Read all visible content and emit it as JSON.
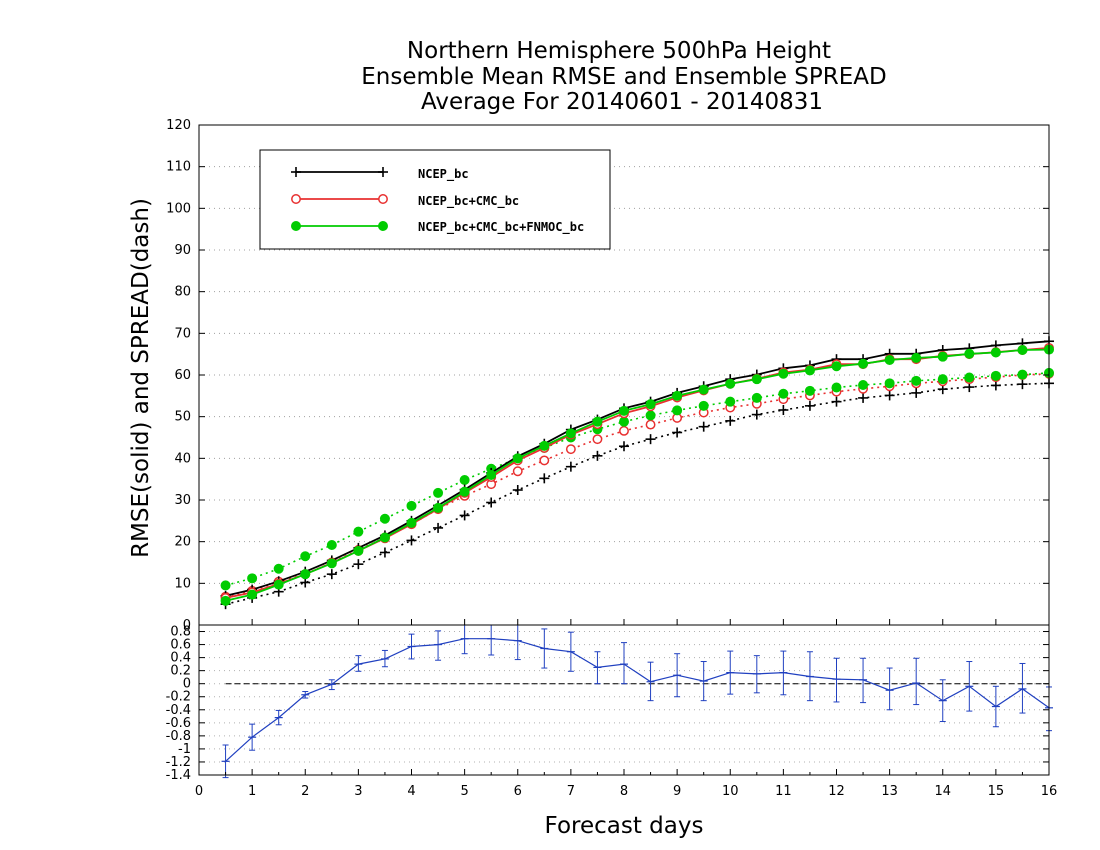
{
  "chart_data": {
    "type": "line",
    "title_lines": [
      "Northern Hemisphere 500hPa Height",
      "Ensemble Mean RMSE and Ensemble SPREAD",
      "Average For 20140601 - 20140831"
    ],
    "xlabel": "Forecast days",
    "ylabel": "RMSE(solid) and SPREAD(dash)",
    "xlim": [
      0,
      16
    ],
    "x_ticks": [
      0,
      1,
      2,
      3,
      4,
      5,
      6,
      7,
      8,
      9,
      10,
      11,
      12,
      13,
      14,
      15,
      16
    ],
    "grid": "horizontal dotted",
    "legend_position": "top-left",
    "x": [
      0.5,
      1.0,
      1.5,
      2.0,
      2.5,
      3.0,
      3.5,
      4.0,
      4.5,
      5.0,
      5.5,
      6.0,
      6.5,
      7.0,
      7.5,
      8.0,
      8.5,
      9.0,
      9.5,
      10.0,
      10.5,
      11.0,
      11.5,
      12.0,
      12.5,
      13.0,
      13.5,
      14.0,
      14.5,
      15.0,
      15.5,
      16.0
    ],
    "top_panel": {
      "ylim": [
        0,
        120
      ],
      "y_ticks": [
        0,
        10,
        20,
        30,
        40,
        50,
        60,
        70,
        80,
        90,
        100,
        110,
        120
      ],
      "series": [
        {
          "name": "NCEP_bc",
          "kind": "rmse",
          "color": "#000000",
          "marker": "plus",
          "values": [
            7.0,
            8.5,
            10.5,
            12.8,
            15.5,
            18.5,
            21.5,
            25.0,
            28.7,
            32.5,
            36.5,
            40.5,
            43.5,
            46.9,
            49.3,
            52.0,
            53.6,
            55.7,
            57.3,
            59.0,
            60.1,
            61.6,
            62.3,
            63.8,
            63.8,
            65.1,
            65.1,
            66.0,
            66.4,
            67.1,
            67.6,
            68.1
          ]
        },
        {
          "name": "NCEP_bc+CMC_bc",
          "kind": "rmse",
          "color": "#e83030",
          "marker": "open-circle",
          "values": [
            6.5,
            7.8,
            9.9,
            12.2,
            14.9,
            17.8,
            20.8,
            24.2,
            27.9,
            31.7,
            35.5,
            39.5,
            42.5,
            45.7,
            48.2,
            50.8,
            52.5,
            54.6,
            56.3,
            57.9,
            59.1,
            60.6,
            61.3,
            62.6,
            62.6,
            63.8,
            63.8,
            64.6,
            65.0,
            65.5,
            66.0,
            66.5
          ]
        },
        {
          "name": "NCEP_bc+CMC_bc+FNMOC_bc",
          "kind": "rmse",
          "color": "#00cc00",
          "marker": "filled-circle",
          "values": [
            5.8,
            7.3,
            9.7,
            12.2,
            14.8,
            17.8,
            21.0,
            24.5,
            28.1,
            32.0,
            36.0,
            40.0,
            43.0,
            46.0,
            48.8,
            51.4,
            53.0,
            55.0,
            56.5,
            57.9,
            59.0,
            60.3,
            61.1,
            62.1,
            62.7,
            63.6,
            64.1,
            64.4,
            65.1,
            65.4,
            66.0,
            66.1
          ]
        },
        {
          "name": "NCEP_bc",
          "kind": "spread",
          "color": "#000000",
          "marker": "plus",
          "values": [
            5.0,
            6.5,
            8.0,
            10.2,
            12.2,
            14.6,
            17.4,
            20.3,
            23.3,
            26.3,
            29.4,
            32.4,
            35.2,
            38.0,
            40.6,
            42.9,
            44.6,
            46.2,
            47.6,
            49.0,
            50.5,
            51.6,
            52.6,
            53.6,
            54.5,
            55.1,
            55.7,
            56.6,
            57.1,
            57.5,
            57.8,
            58.0
          ]
        },
        {
          "name": "NCEP_bc+CMC_bc",
          "kind": "spread",
          "color": "#e83030",
          "marker": "open-circle",
          "values": [
            6.8,
            8.2,
            10.4,
            12.2,
            15.0,
            18.0,
            21.0,
            24.2,
            27.8,
            31.0,
            33.8,
            36.9,
            39.5,
            42.2,
            44.6,
            46.6,
            48.1,
            49.7,
            51.0,
            52.2,
            53.1,
            54.2,
            55.1,
            56.0,
            56.7,
            57.3,
            58.0,
            58.5,
            59.0,
            59.5,
            60.0,
            60.3
          ]
        },
        {
          "name": "NCEP_bc+CMC_bc+FNMOC_bc",
          "kind": "spread",
          "color": "#00cc00",
          "marker": "filled-circle",
          "values": [
            9.5,
            11.2,
            13.5,
            16.5,
            19.2,
            22.4,
            25.5,
            28.6,
            31.7,
            34.8,
            37.5,
            40.0,
            42.5,
            45.0,
            47.0,
            48.8,
            50.3,
            51.5,
            52.6,
            53.6,
            54.5,
            55.5,
            56.2,
            57.0,
            57.6,
            58.0,
            58.6,
            59.0,
            59.4,
            59.8,
            60.1,
            60.5
          ]
        }
      ]
    },
    "bottom_panel": {
      "ylim": [
        -1.4,
        0.9
      ],
      "y_ticks": [
        -1.4,
        -1.2,
        -1.0,
        -0.8,
        -0.6,
        -0.4,
        -0.2,
        0.0,
        0.2,
        0.4,
        0.6,
        0.8
      ],
      "y_tick_labels": [
        "-1.4",
        "-1.2",
        "-1",
        "-0.8",
        "-0.6",
        "-0.4",
        "-0.2",
        "0",
        "0.2",
        "0.4",
        "0.6",
        "0.8"
      ],
      "color": "#2040c0",
      "values": [
        -1.19,
        -0.82,
        -0.52,
        -0.17,
        -0.01,
        0.3,
        0.38,
        0.57,
        0.6,
        0.69,
        0.69,
        0.66,
        0.54,
        0.49,
        0.25,
        0.3,
        0.03,
        0.13,
        0.04,
        0.17,
        0.15,
        0.17,
        0.11,
        0.07,
        0.06,
        -0.1,
        0.01,
        -0.26,
        -0.04,
        -0.35,
        -0.08,
        -0.37
      ],
      "error_low": [
        -1.44,
        -1.02,
        -0.63,
        -0.22,
        -0.09,
        0.19,
        0.26,
        0.38,
        0.36,
        0.46,
        0.44,
        0.37,
        0.24,
        0.19,
        0.0,
        0.0,
        -0.26,
        -0.2,
        -0.26,
        -0.16,
        -0.14,
        -0.17,
        -0.26,
        -0.28,
        -0.29,
        -0.4,
        -0.32,
        -0.58,
        -0.42,
        -0.66,
        -0.45,
        -0.72
      ],
      "error_high": [
        -0.94,
        -0.62,
        -0.41,
        -0.12,
        0.06,
        0.43,
        0.51,
        0.76,
        0.81,
        0.95,
        0.92,
        0.94,
        0.84,
        0.79,
        0.49,
        0.63,
        0.33,
        0.46,
        0.34,
        0.5,
        0.43,
        0.5,
        0.49,
        0.39,
        0.39,
        0.24,
        0.39,
        0.06,
        0.34,
        -0.04,
        0.31,
        -0.05
      ]
    }
  }
}
